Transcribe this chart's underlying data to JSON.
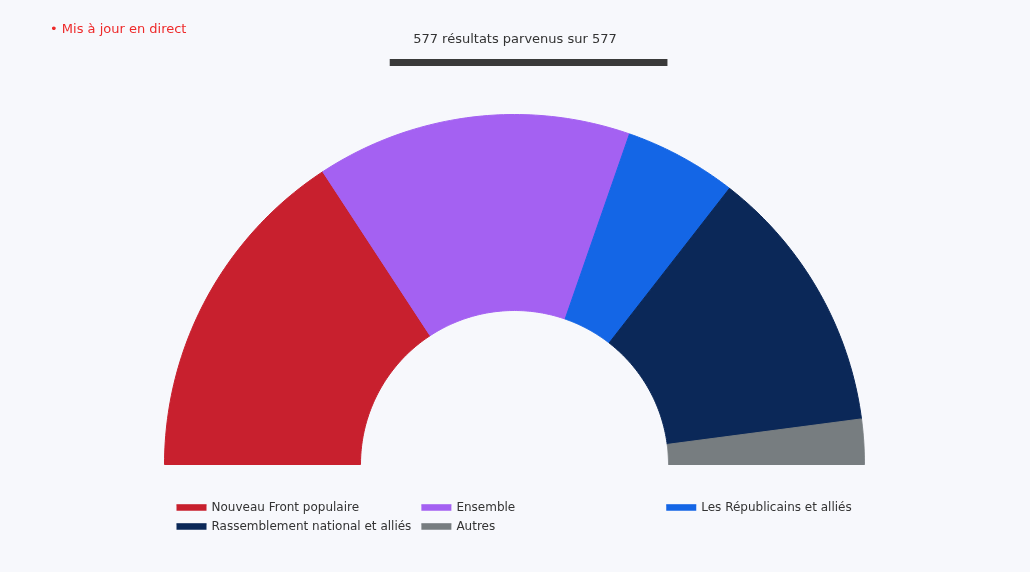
{
  "chart_data": {
    "type": "donut",
    "title": "577 résultats parvenus sur 577",
    "annotations": [
      "• Mis à jour en direct"
    ],
    "categories": [
      "Nouveau Front populaire",
      "Ensemble",
      "Les Républicains et alliés",
      "Rassemblement national et alliés",
      "Autres"
    ],
    "values": [
      31.54,
      29.12,
      10.4,
      24.78,
      4.16
    ],
    "colors": [
      "#c8202e",
      "#a461f2",
      "#1466e6",
      "#0b2858",
      "#777d80"
    ],
    "legend": "bottom"
  }
}
